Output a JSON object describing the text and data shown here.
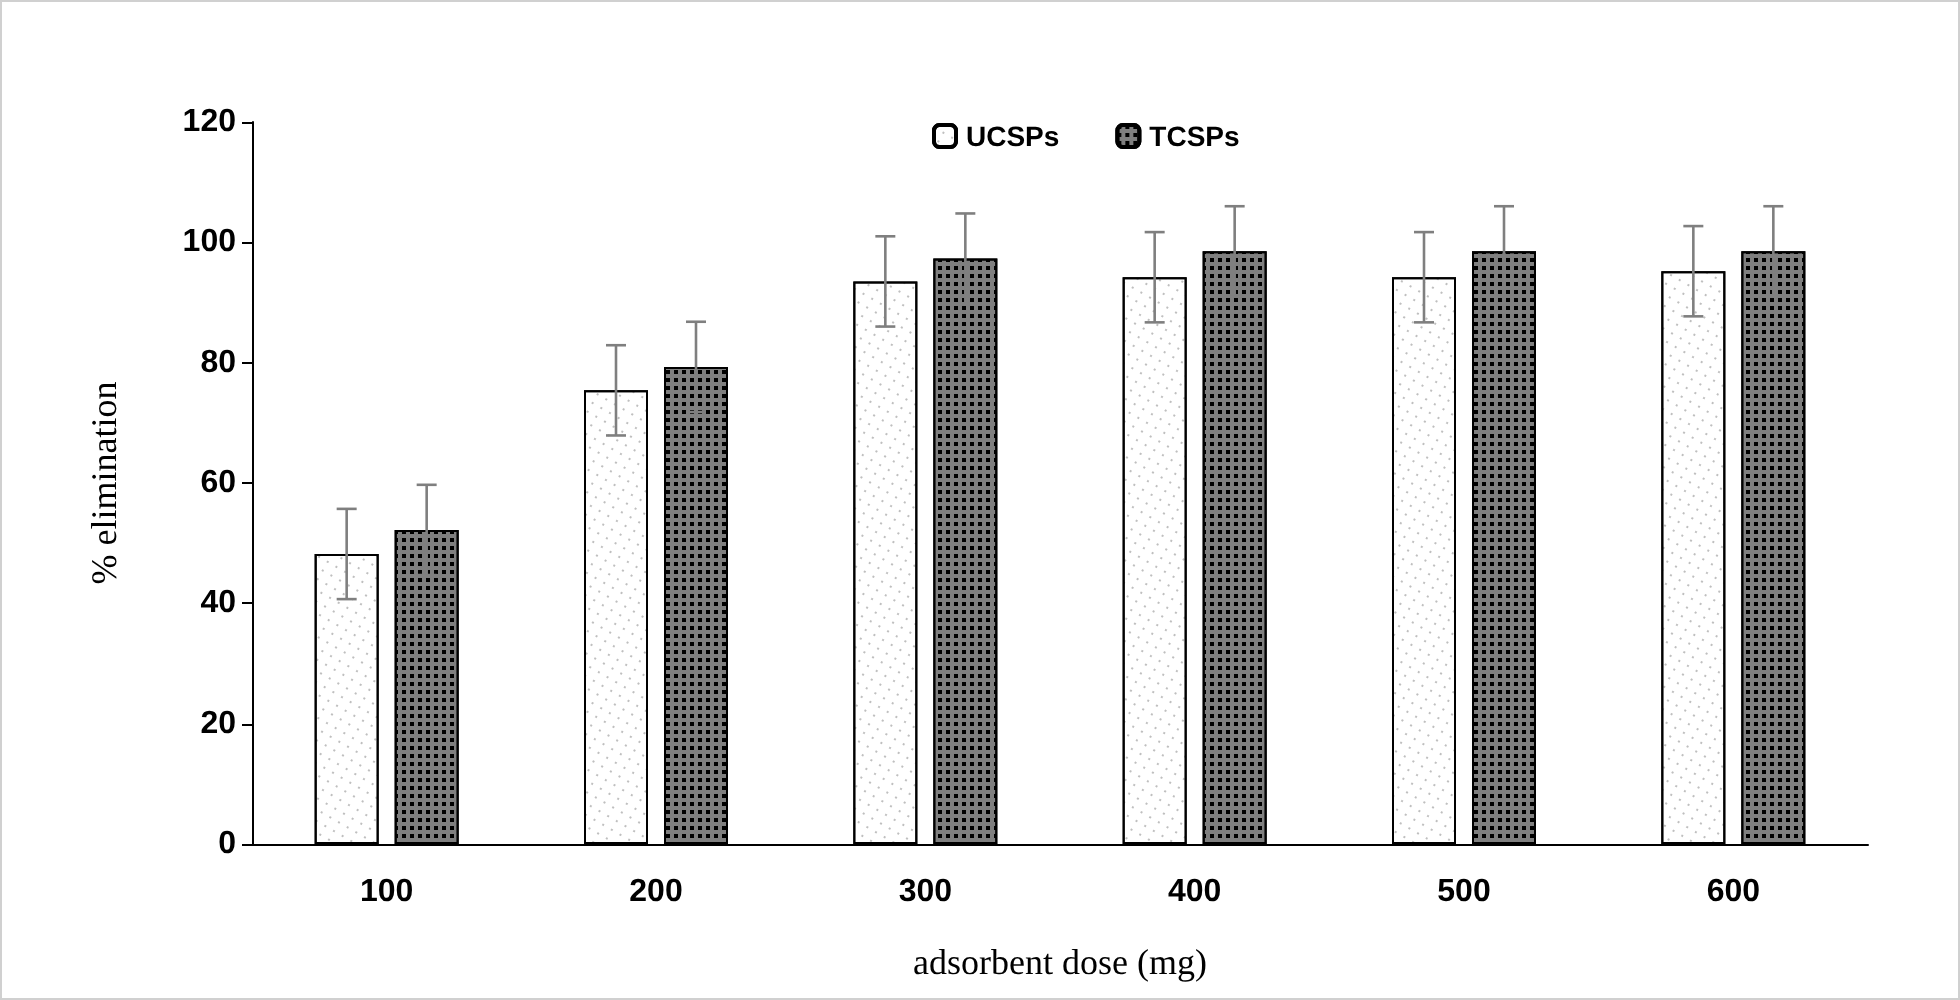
{
  "chart_data": {
    "type": "bar",
    "xlabel": "adsorbent dose (mg)",
    "ylabel": "% elimination",
    "categories": [
      "100",
      "200",
      "300",
      "400",
      "500",
      "600"
    ],
    "series": [
      {
        "name": "UCSPs",
        "color": "#ffffff",
        "values": [
          48.2,
          75.4,
          93.5,
          94.2,
          94.2,
          95.2
        ],
        "errors": [
          7.5,
          7.5,
          7.5,
          7.5,
          7.5,
          7.5
        ]
      },
      {
        "name": "TCSPs",
        "color": "#7f7f7f",
        "values": [
          52.2,
          79.3,
          97.3,
          98.5,
          98.5,
          98.5
        ],
        "errors": [
          7.5,
          7.5,
          7.5,
          7.5,
          7.5,
          7.5
        ]
      }
    ],
    "ylim": [
      0,
      120
    ],
    "yticks": [
      0,
      20,
      40,
      60,
      80,
      100,
      120
    ],
    "grid": false,
    "legend": "top"
  }
}
